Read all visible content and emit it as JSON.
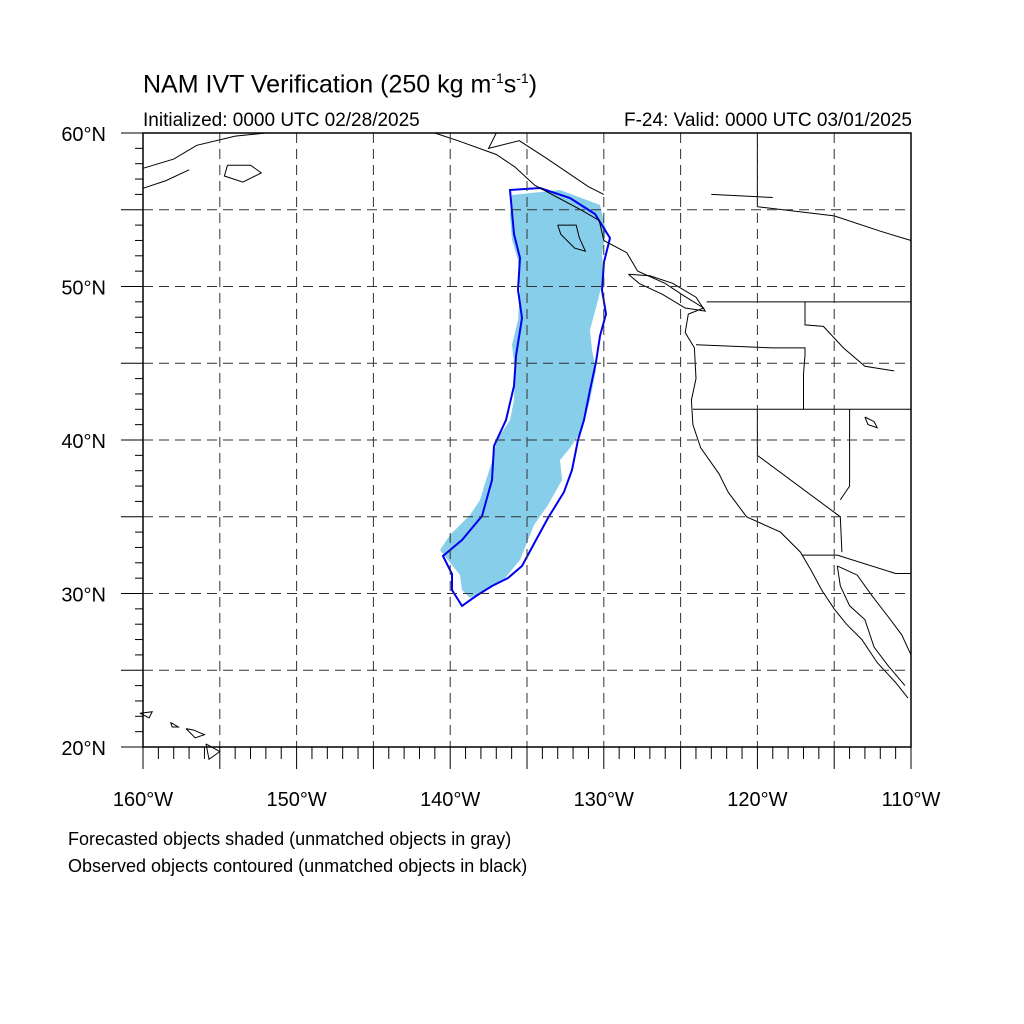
{
  "title": {
    "prefix": "NAM IVT Verification (250 kg m",
    "exp1": "-1",
    "mid": "s",
    "exp2": "-1",
    "suffix": ")"
  },
  "initialized": "Initialized: 0000 UTC 02/28/2025",
  "valid": "F-24: Valid: 0000 UTC 03/01/2025",
  "notes": [
    "Forecasted objects shaded (unmatched objects in gray)",
    "Observed objects contoured (unmatched objects in black)"
  ],
  "map": {
    "lon_range": [
      -160,
      -110
    ],
    "lat_range": [
      20,
      60
    ],
    "lon_ticks": [
      "160°W",
      "150°W",
      "140°W",
      "130°W",
      "120°W",
      "110°W"
    ],
    "lat_ticks": [
      "60°N",
      "50°N",
      "40°N",
      "30°N",
      "20°N"
    ],
    "grid_style": "dashed",
    "forecast_color": "#87ceeb",
    "observed_color": "#0000ee",
    "coast_color": "#000000"
  }
}
